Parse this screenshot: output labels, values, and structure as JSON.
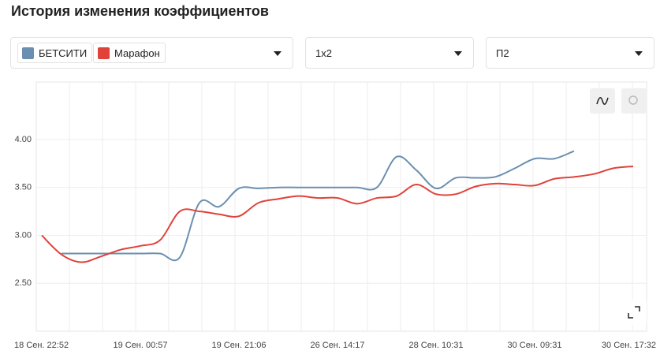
{
  "header": {
    "title": "История изменения коэффициентов"
  },
  "filters": [
    "1х2",
    "П2"
  ],
  "chart_data": {
    "type": "line",
    "categories": [
      "18 Сен. 22:52",
      null,
      null,
      null,
      null,
      "19 Сен. 00:57",
      null,
      null,
      null,
      null,
      "19 Сен. 21:06",
      null,
      null,
      null,
      null,
      "26 Сен. 14:17",
      null,
      null,
      null,
      null,
      "28 Сен. 10:31",
      null,
      null,
      null,
      null,
      "30 Сен. 09:31",
      null,
      null,
      null,
      null,
      "30 Сен. 17:32"
    ],
    "series": [
      {
        "name": "БЕТСИТИ",
        "color": "#6b8fb0",
        "values": [
          null,
          2.81,
          2.81,
          2.81,
          2.81,
          2.81,
          2.81,
          2.77,
          3.34,
          3.3,
          3.49,
          3.49,
          3.5,
          3.5,
          3.5,
          3.5,
          3.5,
          3.5,
          3.82,
          3.68,
          3.49,
          3.6,
          3.6,
          3.61,
          3.7,
          3.8,
          3.8,
          3.88,
          null,
          null,
          null
        ]
      },
      {
        "name": "Марафон",
        "color": "#e0423a",
        "values": [
          3.0,
          2.8,
          2.72,
          2.78,
          2.85,
          2.89,
          2.95,
          3.25,
          3.25,
          3.22,
          3.2,
          3.34,
          3.38,
          3.41,
          3.39,
          3.39,
          3.33,
          3.39,
          3.41,
          3.53,
          3.43,
          3.43,
          3.51,
          3.54,
          3.53,
          3.52,
          3.59,
          3.61,
          3.64,
          3.7,
          3.72
        ]
      }
    ],
    "ylim": [
      2.0,
      4.6
    ],
    "yticks": [
      {
        "value": 2.5,
        "label": "2.50"
      },
      {
        "value": 3,
        "label": "3.00"
      },
      {
        "value": 3.5,
        "label": "3.50"
      },
      {
        "value": 4,
        "label": "4.00"
      }
    ],
    "grid": true
  }
}
